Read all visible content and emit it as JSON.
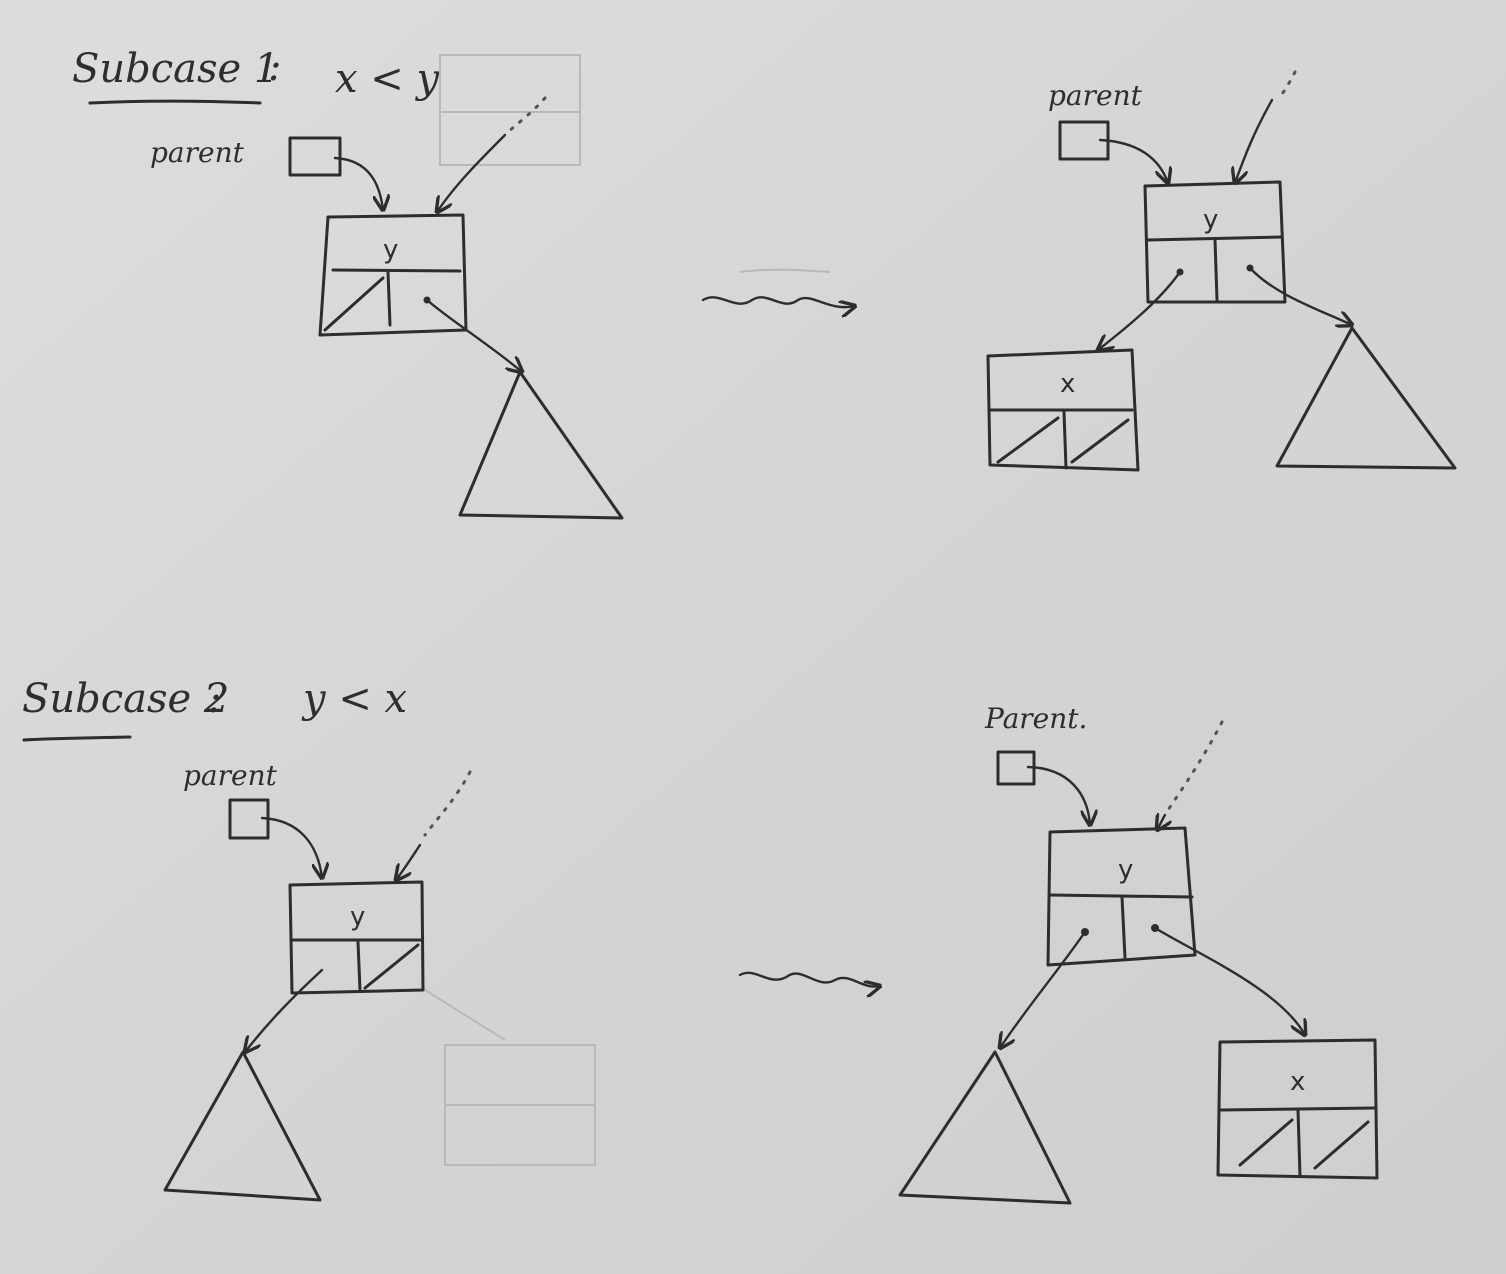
{
  "subcase1": {
    "title": "Subcase 1",
    "colon": ":",
    "condition": "x < y",
    "before": {
      "parent_label": "parent",
      "node_key": "y"
    },
    "after": {
      "parent_label": "parent",
      "root_key": "y",
      "child_key": "x"
    }
  },
  "subcase2": {
    "title": "Subcase 2",
    "colon": ":",
    "condition": "y < x",
    "before": {
      "parent_label": "parent",
      "node_key": "y"
    },
    "after": {
      "parent_label": "Parent.",
      "root_key": "y",
      "child_key": "x"
    }
  },
  "colors": {
    "paper": "#d9d8d6",
    "ink": "#2d2d2d"
  }
}
